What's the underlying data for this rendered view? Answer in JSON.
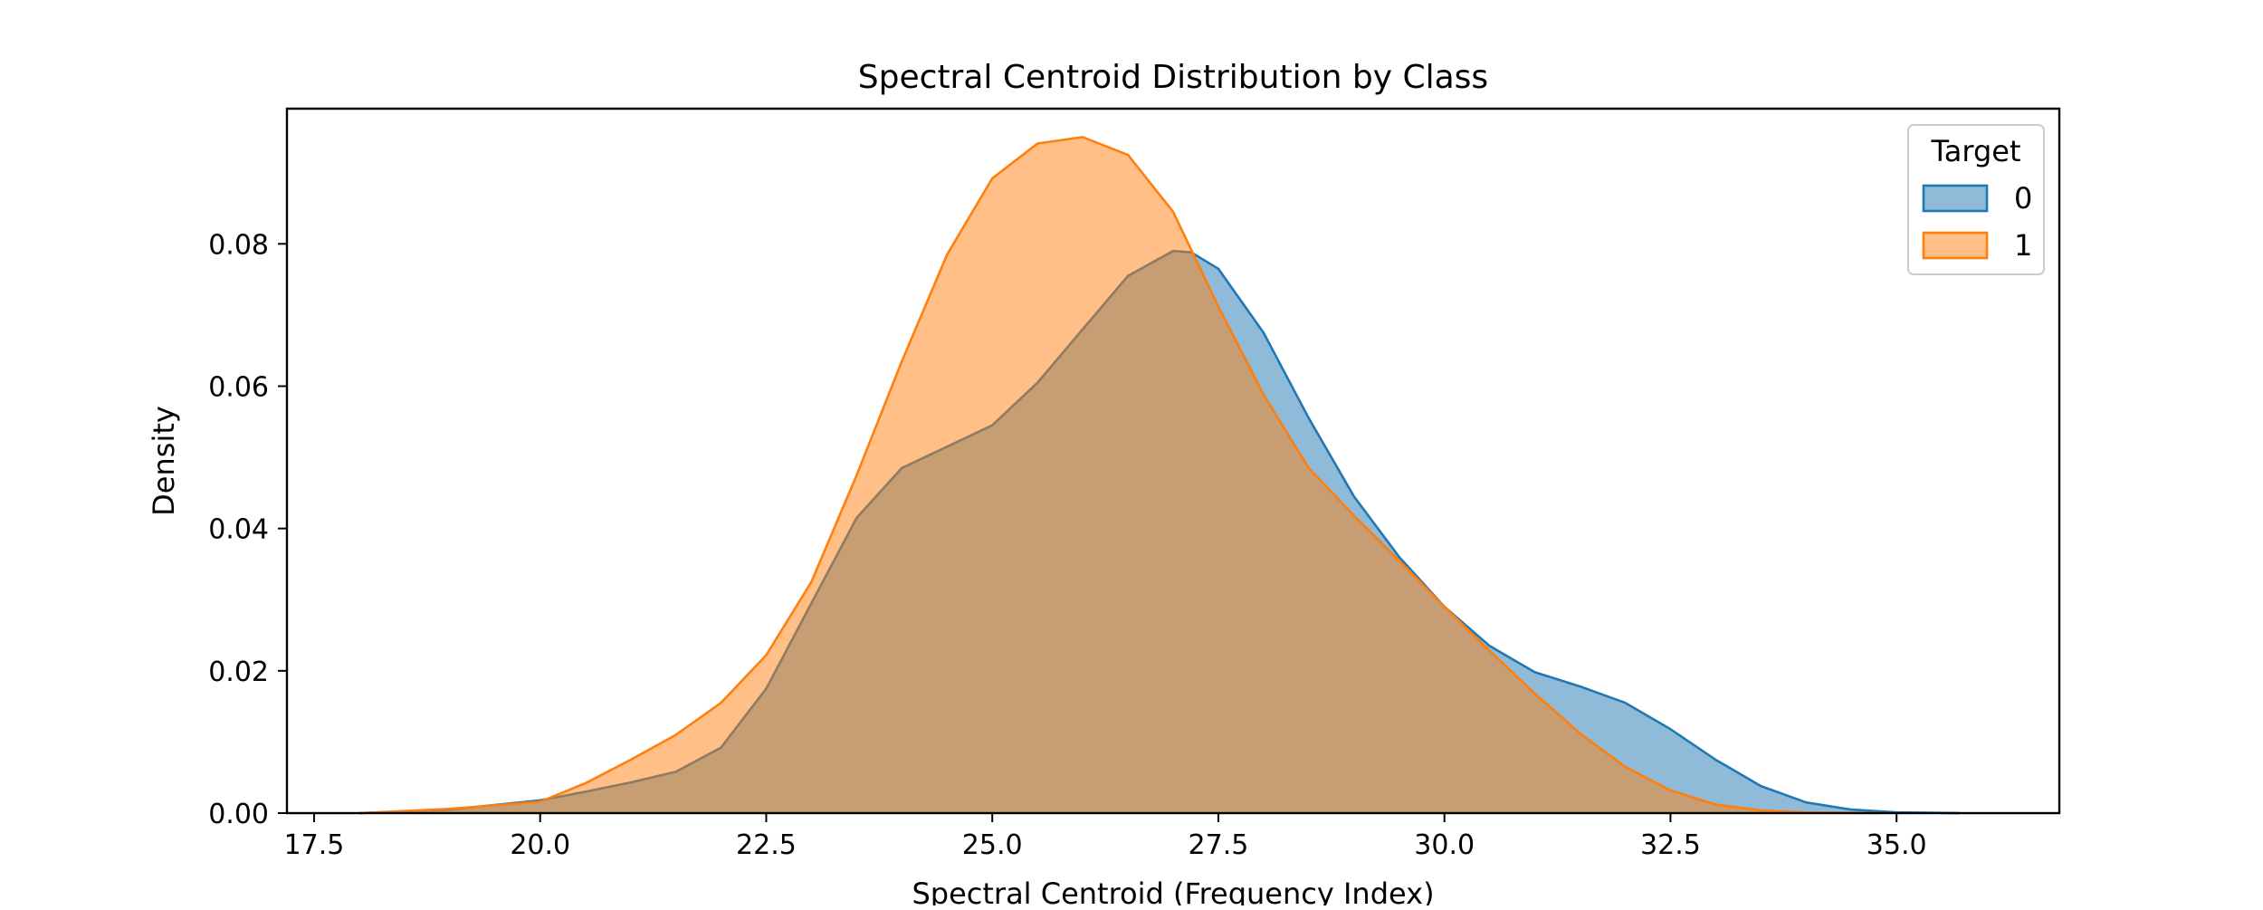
{
  "chart_data": {
    "type": "area",
    "title": "Spectral Centroid Distribution by Class",
    "xlabel": "Spectral Centroid (Frequency Index)",
    "ylabel": "Density",
    "xlim": [
      17.2,
      36.8
    ],
    "ylim": [
      0,
      0.099
    ],
    "xticks": [
      "17.5",
      "20.0",
      "22.5",
      "25.0",
      "27.5",
      "30.0",
      "32.5",
      "35.0"
    ],
    "yticks": [
      "0.00",
      "0.02",
      "0.04",
      "0.06",
      "0.08"
    ],
    "grid": false,
    "legend": {
      "title": "Target",
      "placement": "top-right"
    },
    "series": [
      {
        "name": "0",
        "color": "#1f77b4",
        "x": [
          18.0,
          19.0,
          20.0,
          20.5,
          21.0,
          21.5,
          22.0,
          22.5,
          23.0,
          23.5,
          24.0,
          24.5,
          25.0,
          25.5,
          26.0,
          26.5,
          27.0,
          27.2,
          27.5,
          28.0,
          28.5,
          29.0,
          29.5,
          30.0,
          30.5,
          31.0,
          31.5,
          32.0,
          32.5,
          33.0,
          33.5,
          34.0,
          34.5,
          35.0,
          35.7
        ],
        "y": [
          0.0,
          0.0005,
          0.0018,
          0.003,
          0.0043,
          0.0058,
          0.0092,
          0.0175,
          0.0295,
          0.0415,
          0.0485,
          0.0515,
          0.0545,
          0.0605,
          0.068,
          0.0755,
          0.079,
          0.0788,
          0.0765,
          0.0675,
          0.0555,
          0.0445,
          0.036,
          0.029,
          0.0235,
          0.0198,
          0.0178,
          0.0155,
          0.0118,
          0.0075,
          0.0038,
          0.0015,
          0.0005,
          0.0001,
          0.0
        ]
      },
      {
        "name": "1",
        "color": "#ff7f0e",
        "x": [
          18.0,
          19.0,
          20.0,
          20.5,
          21.0,
          21.5,
          22.0,
          22.5,
          23.0,
          23.5,
          24.0,
          24.5,
          25.0,
          25.5,
          26.0,
          26.5,
          27.0,
          27.5,
          28.0,
          28.5,
          29.0,
          29.5,
          30.0,
          30.5,
          31.0,
          31.5,
          32.0,
          32.5,
          33.0,
          33.5,
          34.0,
          34.8
        ],
        "y": [
          0.0,
          0.0006,
          0.0016,
          0.0042,
          0.0075,
          0.011,
          0.0155,
          0.0222,
          0.0325,
          0.0475,
          0.0635,
          0.0785,
          0.0892,
          0.0941,
          0.095,
          0.0925,
          0.0845,
          0.0712,
          0.0588,
          0.0485,
          0.0418,
          0.0355,
          0.029,
          0.0228,
          0.0168,
          0.0112,
          0.0065,
          0.0032,
          0.0012,
          0.0004,
          0.0001,
          0.0
        ]
      }
    ]
  }
}
